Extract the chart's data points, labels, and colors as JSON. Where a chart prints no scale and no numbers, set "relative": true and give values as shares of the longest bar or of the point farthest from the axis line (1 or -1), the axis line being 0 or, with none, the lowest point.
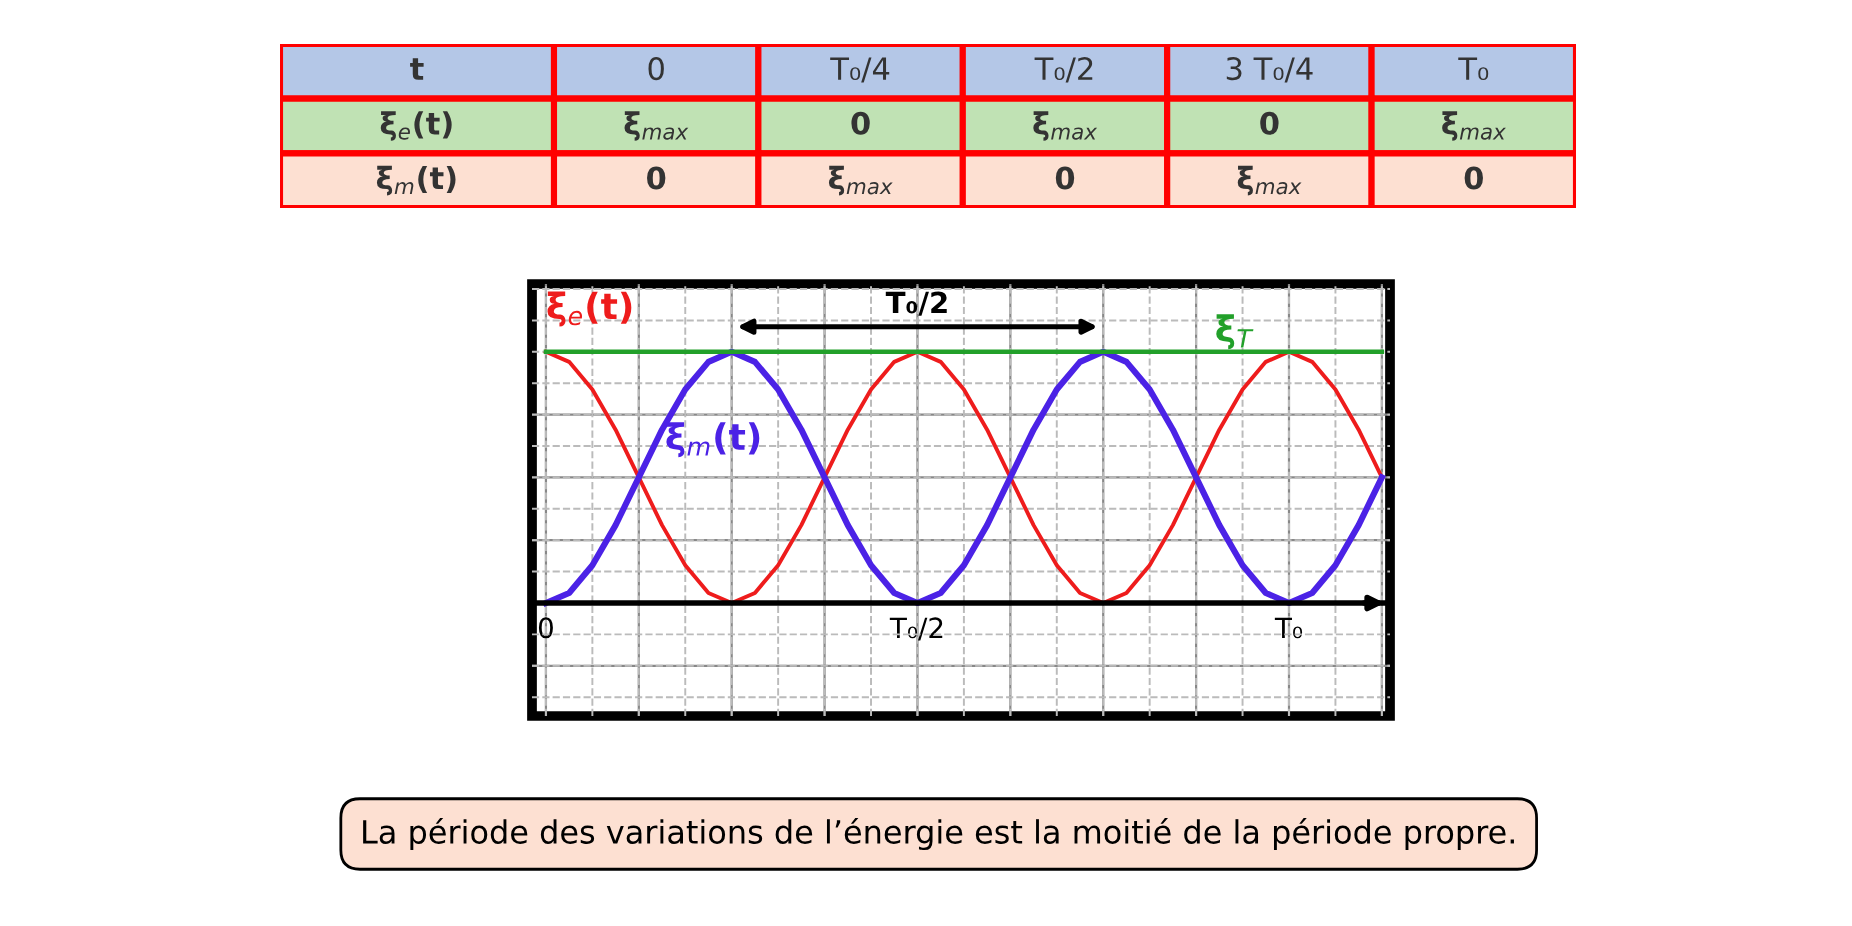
{
  "chart_data": [
    {
      "type": "other",
      "annotations": [
        "t",
        "0",
        "T₀/4",
        "T₀/2",
        "3 T₀/4",
        "T₀",
        "ξ$_{e}$(t)",
        "ξ$_{max}$",
        "0",
        "ξ$_{max}$",
        "0",
        "ξ$_{max}$",
        "ξ$_{m}$(t)",
        "0",
        "ξ$_{max}$",
        "0",
        "ξ$_{max}$",
        "0"
      ],
      "colors": [
        "#b4c7e7",
        "#c0e2b4",
        "#fde0d2"
      ]
    },
    {
      "type": "line",
      "relative": true,
      "categories": [
        "0",
        null,
        null,
        null,
        null,
        null,
        null,
        null,
        null,
        null,
        null,
        null,
        null,
        null,
        null,
        null,
        "T₀/2",
        null,
        null,
        null,
        null,
        null,
        null,
        null,
        null,
        null,
        null,
        null,
        null,
        null,
        null,
        null,
        "T₀",
        null,
        null,
        null,
        null
      ],
      "series": [
        {
          "name": "ξ$_{e}$(t)",
          "color": "#ee1c1c",
          "values": [
            1,
            0.96,
            0.85,
            0.69,
            0.5,
            0.31,
            0.15,
            0.04,
            0,
            0.04,
            0.15,
            0.31,
            0.5,
            0.69,
            0.85,
            0.96,
            1,
            0.96,
            0.85,
            0.69,
            0.5,
            0.31,
            0.15,
            0.04,
            0,
            0.04,
            0.15,
            0.31,
            0.5,
            0.69,
            0.85,
            0.96,
            1,
            0.96,
            0.85,
            0.69,
            0.5
          ]
        },
        {
          "name": "ξ$_{m}$(t)",
          "color": "#4b22e6",
          "values": [
            0,
            0.04,
            0.15,
            0.31,
            0.5,
            0.69,
            0.85,
            0.96,
            1,
            0.96,
            0.85,
            0.69,
            0.5,
            0.31,
            0.15,
            0.04,
            0,
            0.04,
            0.15,
            0.31,
            0.5,
            0.69,
            0.85,
            0.96,
            1,
            0.96,
            0.85,
            0.69,
            0.5,
            0.31,
            0.15,
            0.04,
            0,
            0.04,
            0.15,
            0.31,
            0.5
          ]
        },
        {
          "name": "ξ$_{T}$",
          "color": "#22a02a",
          "values": [
            1,
            1,
            1,
            1,
            1,
            1,
            1,
            1,
            1,
            1,
            1,
            1,
            1,
            1,
            1,
            1,
            1,
            1,
            1,
            1,
            1,
            1,
            1,
            1,
            1,
            1,
            1,
            1,
            1,
            1,
            1,
            1,
            1,
            1,
            1,
            1,
            1
          ]
        }
      ],
      "grid": true,
      "line_style": "solid",
      "annotations": [
        "T₀/2",
        "La période des variations de l’énergie est la moitié de la période propre."
      ]
    }
  ]
}
